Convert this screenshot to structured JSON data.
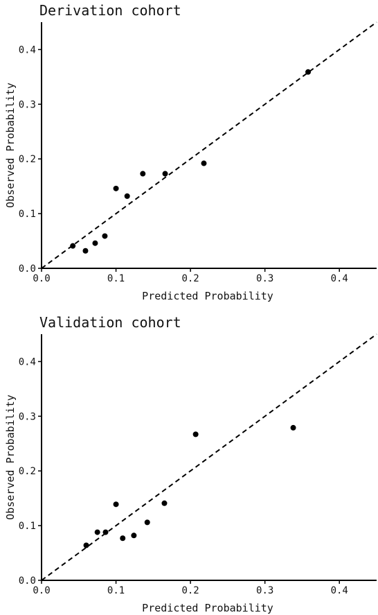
{
  "chart_data": [
    {
      "type": "scatter",
      "title": "Derivation cohort",
      "xlabel": "Predicted Probability",
      "ylabel": "Observed Probability",
      "xlim": [
        0,
        0.45
      ],
      "ylim": [
        0,
        0.45
      ],
      "xticks": [
        0.0,
        0.1,
        0.2,
        0.3,
        0.4
      ],
      "yticks": [
        0.0,
        0.1,
        0.2,
        0.3,
        0.4
      ],
      "xtick_labels": [
        "0.0",
        "0.1",
        "0.2",
        "0.3",
        "0.4"
      ],
      "ytick_labels": [
        "0.0",
        "0.1",
        "0.2",
        "0.3",
        "0.4"
      ],
      "reference_line": "y = x (dashed)",
      "grid": false,
      "points": [
        {
          "x": 0.042,
          "y": 0.041
        },
        {
          "x": 0.059,
          "y": 0.032
        },
        {
          "x": 0.072,
          "y": 0.046
        },
        {
          "x": 0.085,
          "y": 0.059
        },
        {
          "x": 0.1,
          "y": 0.146
        },
        {
          "x": 0.115,
          "y": 0.132
        },
        {
          "x": 0.136,
          "y": 0.173
        },
        {
          "x": 0.166,
          "y": 0.173
        },
        {
          "x": 0.218,
          "y": 0.192
        },
        {
          "x": 0.358,
          "y": 0.359
        }
      ]
    },
    {
      "type": "scatter",
      "title": "Validation cohort",
      "xlabel": "Predicted Probability",
      "ylabel": "Observed Probability",
      "xlim": [
        0,
        0.45
      ],
      "ylim": [
        0,
        0.45
      ],
      "xticks": [
        0.0,
        0.1,
        0.2,
        0.3,
        0.4
      ],
      "yticks": [
        0.0,
        0.1,
        0.2,
        0.3,
        0.4
      ],
      "xtick_labels": [
        "0.0",
        "0.1",
        "0.2",
        "0.3",
        "0.4"
      ],
      "ytick_labels": [
        "0.0",
        "0.1",
        "0.2",
        "0.3",
        "0.4"
      ],
      "reference_line": "y = x (dashed)",
      "grid": false,
      "points": [
        {
          "x": 0.06,
          "y": 0.064
        },
        {
          "x": 0.075,
          "y": 0.088
        },
        {
          "x": 0.086,
          "y": 0.088
        },
        {
          "x": 0.1,
          "y": 0.139
        },
        {
          "x": 0.109,
          "y": 0.077
        },
        {
          "x": 0.124,
          "y": 0.082
        },
        {
          "x": 0.142,
          "y": 0.106
        },
        {
          "x": 0.165,
          "y": 0.141
        },
        {
          "x": 0.207,
          "y": 0.267
        },
        {
          "x": 0.338,
          "y": 0.279
        }
      ]
    }
  ]
}
